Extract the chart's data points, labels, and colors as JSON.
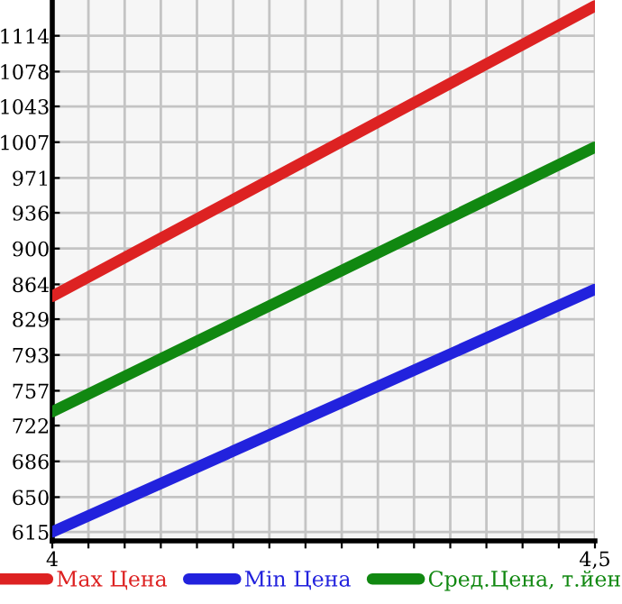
{
  "chart_data": {
    "type": "line",
    "x": [
      4,
      4.5
    ],
    "series": [
      {
        "name": "Max Цена",
        "color": "#dd2222",
        "values": [
          852,
          1144
        ]
      },
      {
        "name": "Min Цена",
        "color": "#2222dd",
        "values": [
          615,
          859
        ]
      },
      {
        "name": "Сред.Цена, т.йен",
        "color": "#118811",
        "values": [
          736,
          1002
        ]
      }
    ],
    "xlim": [
      4,
      4.5
    ],
    "xticks": [
      4,
      {
        "value": 4.0333,
        "label": null
      },
      {
        "value": 4.0667,
        "label": null
      },
      {
        "value": 4.1,
        "label": null
      },
      {
        "value": 4.1333,
        "label": null
      },
      {
        "value": 4.1667,
        "label": null
      },
      {
        "value": 4.2,
        "label": null
      },
      {
        "value": 4.2333,
        "label": null
      },
      {
        "value": 4.2667,
        "label": null
      },
      {
        "value": 4.3,
        "label": null
      },
      {
        "value": 4.3333,
        "label": null
      },
      {
        "value": 4.3667,
        "label": null
      },
      {
        "value": 4.4,
        "label": null
      },
      {
        "value": 4.4333,
        "label": null
      },
      {
        "value": 4.4667,
        "label": null
      },
      {
        "value": 4.5,
        "label": "4,5"
      }
    ],
    "ylim": [
      606,
      1150
    ],
    "yticks": [
      615,
      650,
      686,
      722,
      757,
      793,
      829,
      864,
      900,
      936,
      971,
      1007,
      1043,
      1078,
      1114
    ],
    "grid": true,
    "legend": "bottom",
    "marker": "none",
    "line_style": "solid"
  }
}
